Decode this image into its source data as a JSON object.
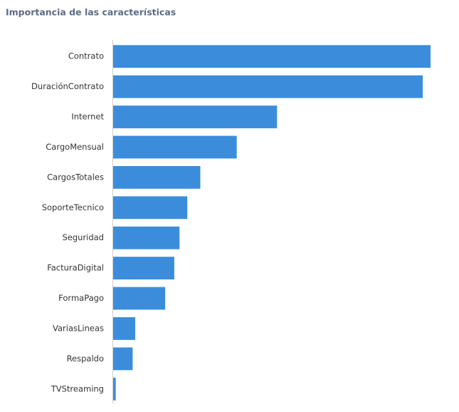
{
  "chart_data": {
    "type": "bar",
    "orientation": "horizontal",
    "title": "Importancia de las características",
    "categories": [
      "Contrato",
      "DuraciónContrato",
      "Internet",
      "CargoMensual",
      "CargosTotales",
      "SoporteTecnico",
      "Seguridad",
      "FacturaDigital",
      "FormaPago",
      "VariasLineas",
      "Respaldo",
      "TVStreaming"
    ],
    "values": [
      0.244,
      0.238,
      0.126,
      0.095,
      0.067,
      0.057,
      0.051,
      0.047,
      0.04,
      0.017,
      0.015,
      0.002
    ],
    "color": "#3b8ddb"
  }
}
